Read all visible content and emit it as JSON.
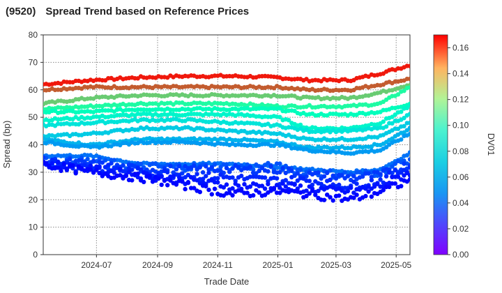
{
  "header": {
    "code": "(9520)",
    "title": "Spread Trend based on Reference Prices"
  },
  "chart_data": {
    "type": "scatter",
    "title": "Spread Trend based on Reference Prices",
    "xlabel": "Trade Date",
    "ylabel": "Spread (bp)",
    "colorbar_label": "DV01",
    "x_ticks": [
      "2024-07",
      "2024-09",
      "2024-11",
      "2025-01",
      "2025-03",
      "2025-05"
    ],
    "y_ticks": [
      "0",
      "10",
      "20",
      "30",
      "40",
      "50",
      "60",
      "70",
      "80"
    ],
    "colorbar_ticks": [
      "0.00",
      "0.02",
      "0.04",
      "0.06",
      "0.08",
      "0.10",
      "0.12",
      "0.14",
      "0.16"
    ],
    "xlim": [
      "2024-05-08",
      "2025-05-15"
    ],
    "ylim": [
      0,
      80
    ],
    "clim": [
      0,
      0.17
    ],
    "grid": true,
    "colormap": "rainbow",
    "series": [
      {
        "dv01": 0.165,
        "points": [
          [
            "2024-05-08",
            62
          ],
          [
            "2024-06-25",
            63.5
          ],
          [
            "2024-08-15",
            64.5
          ],
          [
            "2024-10-01",
            65
          ],
          [
            "2024-11-15",
            65
          ],
          [
            "2025-01-01",
            64.5
          ],
          [
            "2025-02-01",
            63.5
          ],
          [
            "2025-03-15",
            63.5
          ],
          [
            "2025-04-15",
            66
          ],
          [
            "2025-05-15",
            69
          ]
        ]
      },
      {
        "dv01": 0.15,
        "points": [
          [
            "2024-05-08",
            60
          ],
          [
            "2024-06-25",
            61
          ],
          [
            "2024-08-15",
            61
          ],
          [
            "2024-10-01",
            61
          ],
          [
            "2024-11-15",
            61
          ],
          [
            "2025-01-01",
            61
          ],
          [
            "2025-02-01",
            60
          ],
          [
            "2025-03-15",
            60
          ],
          [
            "2025-04-15",
            62
          ],
          [
            "2025-05-15",
            64
          ]
        ]
      },
      {
        "dv01": 0.12,
        "points": [
          [
            "2024-05-08",
            55
          ],
          [
            "2024-06-25",
            57
          ],
          [
            "2024-08-15",
            58
          ],
          [
            "2024-10-01",
            58
          ],
          [
            "2024-11-15",
            58
          ],
          [
            "2025-01-01",
            58
          ],
          [
            "2025-02-01",
            57
          ],
          [
            "2025-03-15",
            57
          ],
          [
            "2025-04-15",
            59
          ],
          [
            "2025-05-15",
            62
          ]
        ]
      },
      {
        "dv01": 0.095,
        "points": [
          [
            "2024-05-08",
            53
          ],
          [
            "2024-06-25",
            54
          ],
          [
            "2024-08-15",
            55
          ],
          [
            "2024-10-01",
            55
          ],
          [
            "2024-11-15",
            55
          ],
          [
            "2025-01-01",
            54
          ],
          [
            "2025-02-01",
            54
          ],
          [
            "2025-03-15",
            54
          ],
          [
            "2025-04-15",
            55
          ],
          [
            "2025-05-15",
            61
          ]
        ]
      },
      {
        "dv01": 0.08,
        "points": [
          [
            "2024-05-08",
            52
          ],
          [
            "2024-06-25",
            52
          ],
          [
            "2024-08-15",
            53
          ],
          [
            "2024-10-01",
            53
          ],
          [
            "2024-11-15",
            53
          ],
          [
            "2025-01-01",
            53
          ],
          [
            "2025-02-01",
            51
          ],
          [
            "2025-03-15",
            51
          ],
          [
            "2025-04-15",
            52
          ],
          [
            "2025-05-15",
            55
          ]
        ]
      },
      {
        "dv01": 0.07,
        "points": [
          [
            "2024-05-08",
            49
          ],
          [
            "2024-06-25",
            50
          ],
          [
            "2024-08-15",
            51
          ],
          [
            "2024-10-01",
            51
          ],
          [
            "2024-11-15",
            51
          ],
          [
            "2025-01-01",
            50
          ],
          [
            "2025-02-01",
            46
          ],
          [
            "2025-03-15",
            46
          ],
          [
            "2025-04-15",
            48
          ],
          [
            "2025-05-15",
            54
          ]
        ]
      },
      {
        "dv01": 0.06,
        "points": [
          [
            "2024-05-08",
            47
          ],
          [
            "2024-06-25",
            48
          ],
          [
            "2024-08-15",
            49
          ],
          [
            "2024-10-01",
            49
          ],
          [
            "2024-11-15",
            48
          ],
          [
            "2025-01-01",
            47
          ],
          [
            "2025-02-01",
            45
          ],
          [
            "2025-03-15",
            45
          ],
          [
            "2025-04-15",
            46
          ],
          [
            "2025-05-15",
            51
          ]
        ]
      },
      {
        "dv01": 0.05,
        "points": [
          [
            "2024-05-08",
            43
          ],
          [
            "2024-06-25",
            44
          ],
          [
            "2024-08-15",
            46
          ],
          [
            "2024-10-01",
            46
          ],
          [
            "2024-11-15",
            45
          ],
          [
            "2025-01-01",
            44
          ],
          [
            "2025-02-01",
            42
          ],
          [
            "2025-03-15",
            42
          ],
          [
            "2025-04-15",
            43
          ],
          [
            "2025-05-15",
            48
          ]
        ]
      },
      {
        "dv01": 0.042,
        "points": [
          [
            "2024-05-08",
            42
          ],
          [
            "2024-06-25",
            40
          ],
          [
            "2024-08-15",
            42
          ],
          [
            "2024-10-01",
            42
          ],
          [
            "2024-11-15",
            42
          ],
          [
            "2025-01-01",
            41
          ],
          [
            "2025-02-01",
            39
          ],
          [
            "2025-03-15",
            39
          ],
          [
            "2025-04-15",
            40
          ],
          [
            "2025-05-15",
            46
          ]
        ]
      },
      {
        "dv01": 0.035,
        "points": [
          [
            "2024-05-08",
            41
          ],
          [
            "2024-06-25",
            39
          ],
          [
            "2024-08-15",
            41
          ],
          [
            "2024-10-01",
            41
          ],
          [
            "2024-11-15",
            40
          ],
          [
            "2025-01-01",
            40
          ],
          [
            "2025-02-01",
            38
          ],
          [
            "2025-03-15",
            37
          ],
          [
            "2025-04-15",
            38
          ],
          [
            "2025-05-15",
            44
          ]
        ]
      },
      {
        "dv01": 0.025,
        "points": [
          [
            "2024-05-08",
            36
          ],
          [
            "2024-06-25",
            36
          ],
          [
            "2024-08-15",
            33
          ],
          [
            "2024-10-01",
            33
          ],
          [
            "2024-11-15",
            33
          ],
          [
            "2025-01-01",
            32
          ],
          [
            "2025-02-01",
            31
          ],
          [
            "2025-03-15",
            30
          ],
          [
            "2025-04-15",
            31
          ],
          [
            "2025-05-15",
            37
          ]
        ]
      },
      {
        "dv01": 0.018,
        "points": [
          [
            "2024-05-08",
            34
          ],
          [
            "2024-06-25",
            34
          ],
          [
            "2024-08-15",
            32
          ],
          [
            "2024-10-01",
            32
          ],
          [
            "2024-11-15",
            32
          ],
          [
            "2025-01-01",
            32
          ],
          [
            "2025-02-01",
            30
          ],
          [
            "2025-03-15",
            29
          ],
          [
            "2025-04-15",
            30
          ],
          [
            "2025-05-15",
            35
          ]
        ]
      },
      {
        "dv01": 0.012,
        "points": [
          [
            "2024-05-08",
            34
          ],
          [
            "2024-06-25",
            33
          ],
          [
            "2024-08-15",
            31
          ],
          [
            "2024-10-01",
            31
          ],
          [
            "2024-11-15",
            31
          ],
          [
            "2025-01-01",
            31
          ],
          [
            "2025-02-01",
            29
          ],
          [
            "2025-03-15",
            28
          ],
          [
            "2025-04-15",
            29
          ],
          [
            "2025-05-15",
            33
          ]
        ]
      },
      {
        "dv01": 0.008,
        "points": [
          [
            "2024-05-08",
            34
          ],
          [
            "2024-06-25",
            32
          ],
          [
            "2024-08-15",
            30
          ],
          [
            "2024-10-01",
            29
          ],
          [
            "2024-11-15",
            28
          ],
          [
            "2025-01-01",
            27
          ],
          [
            "2025-02-01",
            27
          ],
          [
            "2025-03-15",
            25
          ],
          [
            "2025-04-15",
            27
          ],
          [
            "2025-05-15",
            32
          ]
        ]
      },
      {
        "dv01": 0.004,
        "points": [
          [
            "2024-05-08",
            33
          ],
          [
            "2024-06-25",
            31
          ],
          [
            "2024-08-15",
            29
          ],
          [
            "2024-10-01",
            27
          ],
          [
            "2024-11-15",
            25
          ],
          [
            "2025-01-01",
            25
          ],
          [
            "2025-02-01",
            24
          ],
          [
            "2025-03-15",
            23
          ],
          [
            "2025-04-15",
            25
          ],
          [
            "2025-05-15",
            30
          ]
        ]
      },
      {
        "dv01": 0.001,
        "points": [
          [
            "2024-05-08",
            33
          ],
          [
            "2024-06-25",
            30
          ],
          [
            "2024-08-15",
            28
          ],
          [
            "2024-10-01",
            25
          ],
          [
            "2024-11-15",
            22
          ],
          [
            "2025-01-01",
            23
          ],
          [
            "2025-02-01",
            22
          ],
          [
            "2025-03-15",
            20
          ],
          [
            "2025-04-15",
            23
          ],
          [
            "2025-05-15",
            27
          ]
        ]
      }
    ]
  }
}
